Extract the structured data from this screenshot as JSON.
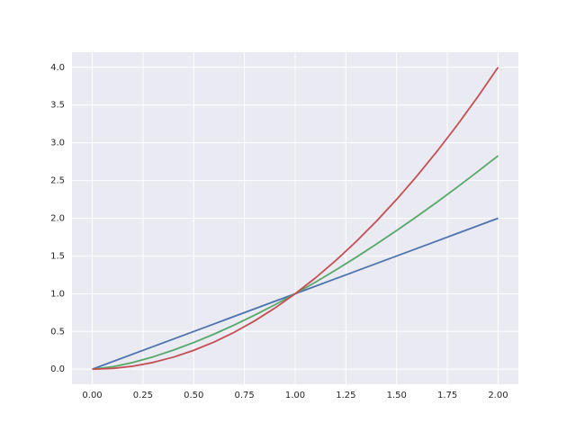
{
  "chart_data": {
    "type": "line",
    "x": [
      0,
      0.1,
      0.2,
      0.3,
      0.4,
      0.5,
      0.6,
      0.7,
      0.8,
      0.9,
      1.0,
      1.1,
      1.2,
      1.3,
      1.4,
      1.5,
      1.6,
      1.7,
      1.8,
      1.9,
      2.0
    ],
    "series": [
      {
        "color": "#4c72b0",
        "values": [
          0,
          0.1,
          0.2,
          0.3,
          0.4,
          0.5,
          0.6,
          0.7,
          0.8,
          0.9,
          1.0,
          1.1,
          1.2,
          1.3,
          1.4,
          1.5,
          1.6,
          1.7,
          1.8,
          1.9,
          2.0
        ]
      },
      {
        "color": "#55a868",
        "values": [
          0,
          0.0316,
          0.0894,
          0.1643,
          0.253,
          0.3536,
          0.4648,
          0.5857,
          0.7155,
          0.8538,
          1.0,
          1.1537,
          1.3145,
          1.4822,
          1.6565,
          1.8371,
          2.0239,
          2.2165,
          2.415,
          2.619,
          2.8284
        ]
      },
      {
        "color": "#c44e52",
        "values": [
          0,
          0.01,
          0.04,
          0.09,
          0.16,
          0.25,
          0.36,
          0.49,
          0.64,
          0.81,
          1.0,
          1.21,
          1.44,
          1.69,
          1.96,
          2.25,
          2.56,
          2.89,
          3.24,
          3.61,
          4.0
        ]
      }
    ],
    "xlim": [
      -0.1,
      2.1
    ],
    "ylim": [
      -0.2,
      4.2
    ],
    "xticks": [
      {
        "value": 0,
        "label": "0.00"
      },
      {
        "value": 0.25,
        "label": "0.25"
      },
      {
        "value": 0.5,
        "label": "0.50"
      },
      {
        "value": 0.75,
        "label": "0.75"
      },
      {
        "value": 1,
        "label": "1.00"
      },
      {
        "value": 1.25,
        "label": "1.25"
      },
      {
        "value": 1.5,
        "label": "1.50"
      },
      {
        "value": 1.75,
        "label": "1.75"
      },
      {
        "value": 2,
        "label": "2.00"
      }
    ],
    "yticks": [
      {
        "value": 0,
        "label": "0.0"
      },
      {
        "value": 0.5,
        "label": "0.5"
      },
      {
        "value": 1,
        "label": "1.0"
      },
      {
        "value": 1.5,
        "label": "1.5"
      },
      {
        "value": 2,
        "label": "2.0"
      },
      {
        "value": 2.5,
        "label": "2.5"
      },
      {
        "value": 3,
        "label": "3.0"
      },
      {
        "value": 3.5,
        "label": "3.5"
      },
      {
        "value": 4,
        "label": "4.0"
      }
    ],
    "grid": true
  }
}
